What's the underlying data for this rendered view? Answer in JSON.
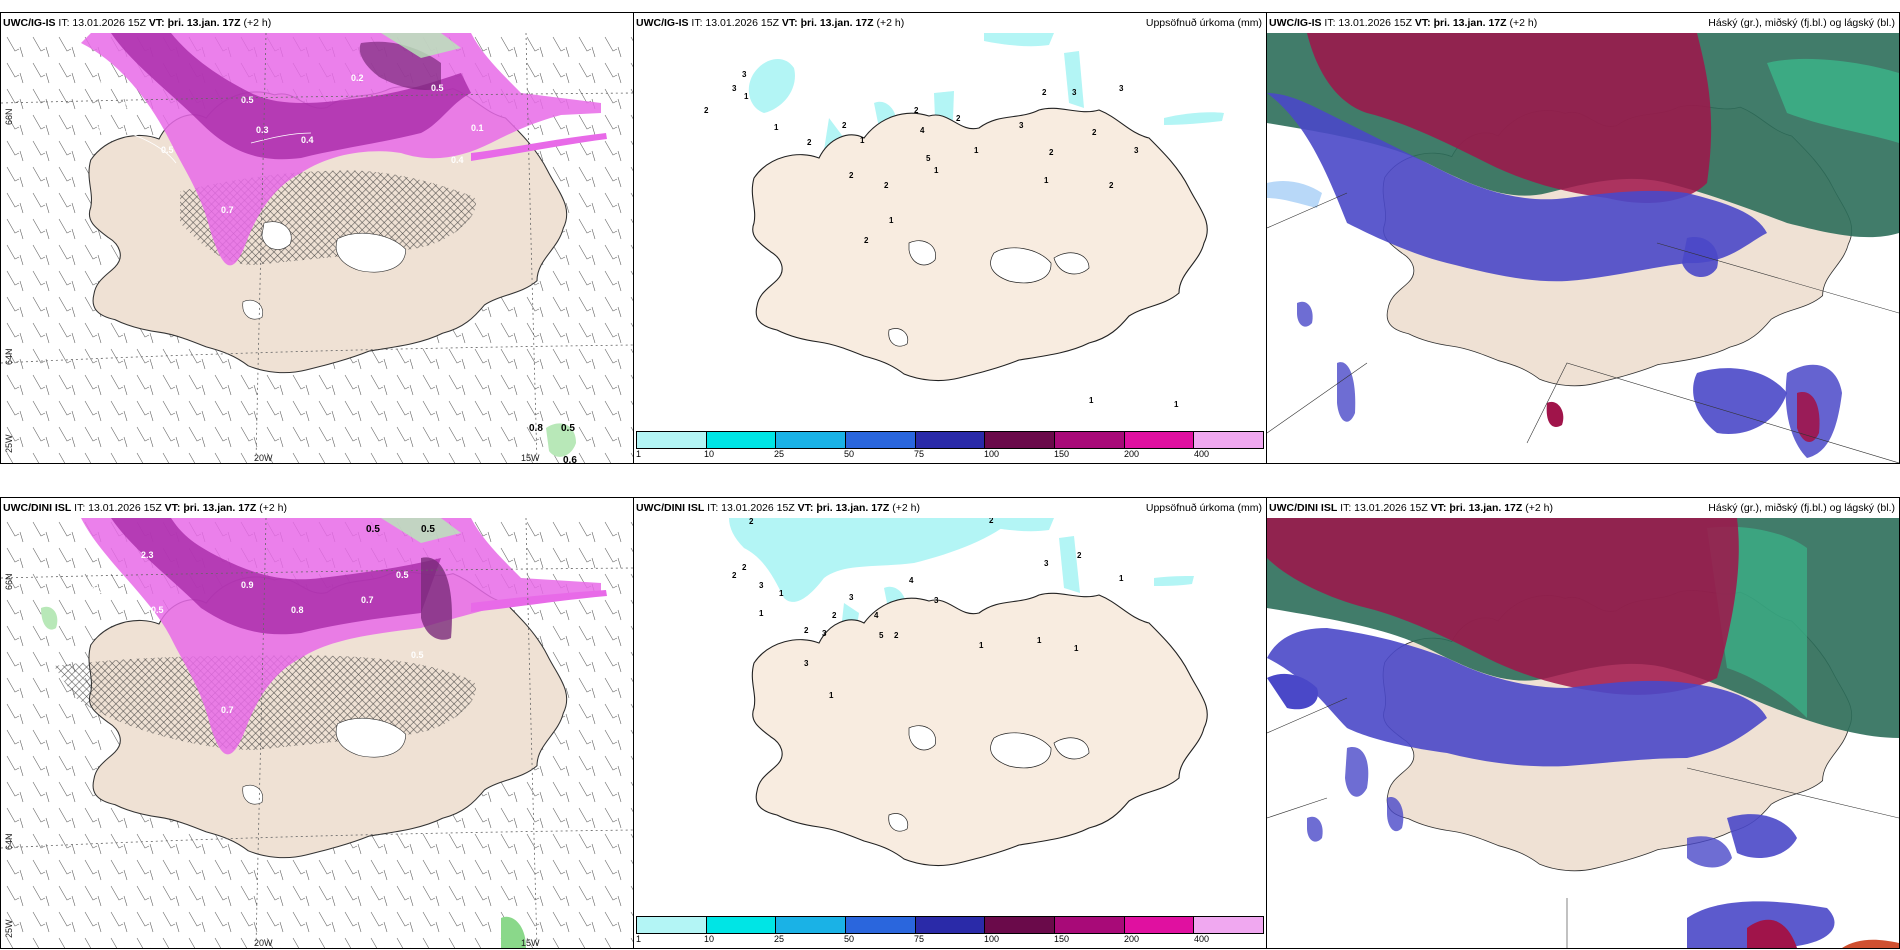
{
  "panels": {
    "p1": {
      "model": "UWC/IG-IS",
      "it": "IT: 13.01.2026 15Z",
      "vt_label": "VT:",
      "vt": "þri. 13.jan. 17Z",
      "lead": "(+2 h)",
      "right": ""
    },
    "p2": {
      "model": "UWC/IG-IS",
      "it": "IT: 13.01.2026 15Z",
      "vt_label": "VT:",
      "vt": "þri. 13.jan. 17Z",
      "lead": "(+2 h)",
      "right": "Uppsöfnuð úrkoma (mm)"
    },
    "p3": {
      "model": "UWC/IG-IS",
      "it": "IT: 13.01.2026 15Z",
      "vt_label": "VT:",
      "vt": "þri. 13.jan. 17Z",
      "lead": "(+2 h)",
      "right": "Háský (gr.), miðský (fj.bl.) og lágský (bl.)"
    },
    "p4": {
      "model": "UWC/DINI ISL",
      "it": "IT: 13.01.2026 15Z",
      "vt_label": "VT:",
      "vt": "þri. 13.jan. 17Z",
      "lead": "(+2 h)",
      "right": ""
    },
    "p5": {
      "model": "UWC/DINI ISL",
      "it": "IT: 13.01.2026 15Z",
      "vt_label": "VT:",
      "vt": "þri. 13.jan. 17Z",
      "lead": "(+2 h)",
      "right": "Uppsöfnuð úrkoma (mm)"
    },
    "p6": {
      "model": "UWC/DINI ISL",
      "it": "IT: 13.01.2026 15Z",
      "vt_label": "VT:",
      "vt": "þri. 13.jan. 17Z",
      "lead": "(+2 h)",
      "right": "Háský (gr.), miðský (fj.bl.) og lágský (bl.)"
    }
  },
  "grid_labels": {
    "lat66": "66N",
    "lat64": "64N",
    "lon20": "20W",
    "lon15": "15W",
    "lon25": "25W"
  },
  "precip_values_top": [
    "3",
    "3",
    "1",
    "2",
    "1",
    "2",
    "2",
    "1",
    "2",
    "2",
    "1",
    "2",
    "4",
    "5",
    "1",
    "2",
    "1",
    "3",
    "2",
    "3",
    "2",
    "3",
    "1",
    "2",
    "2",
    "3",
    "3",
    "1",
    "1"
  ],
  "precip_values_bottom": [
    "2",
    "2",
    "3",
    "1",
    "3",
    "1",
    "2",
    "3",
    "2",
    "3",
    "4",
    "5",
    "2",
    "4",
    "3",
    "1",
    "1",
    "2",
    "3",
    "4",
    "1",
    "1",
    "3",
    "2"
  ],
  "precip_legend": {
    "labels": [
      "1",
      "10",
      "25",
      "50",
      "75",
      "100",
      "150",
      "200",
      "400"
    ],
    "colors": [
      "#b3f5f5",
      "#00e5e5",
      "#1ab2e6",
      "#2a66dd",
      "#2a2aa8",
      "#6a0a4a",
      "#a80a78",
      "#e010a0",
      "#f0a8f0"
    ]
  },
  "colors": {
    "land": "#efe1d4",
    "snow_magenta": "#e86ae8",
    "snow_dark": "#7a2a7a",
    "sea_green": "#2c6e5a",
    "cloud_red": "#a0144a",
    "cloud_blue": "#4a48c8"
  }
}
